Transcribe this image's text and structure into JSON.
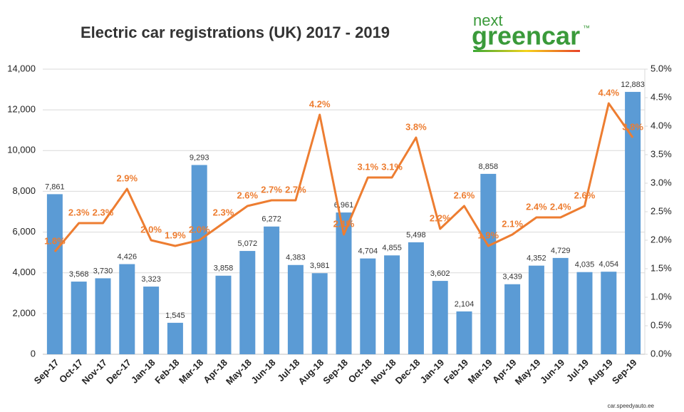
{
  "chart_data": {
    "type": "bar",
    "title": "Electric car registrations (UK) 2017 - 2019",
    "logo": [
      "next",
      "greencar",
      "™"
    ],
    "watermark": "car.speedyauto.ee",
    "categories": [
      "Sep-17",
      "Oct-17",
      "Nov-17",
      "Dec-17",
      "Jan-18",
      "Feb-18",
      "Mar-18",
      "Apr-18",
      "May-18",
      "Jun-18",
      "Jul-18",
      "Aug-18",
      "Sep-18",
      "Oct-18",
      "Nov-18",
      "Dec-18",
      "Jan-19",
      "Feb-19",
      "Mar-19",
      "Apr-19",
      "May-19",
      "Jun-19",
      "Jul-19",
      "Aug-19",
      "Sep-19"
    ],
    "series": [
      {
        "type": "bar",
        "color": "#5b9bd5",
        "values": [
          7861,
          3568,
          3730,
          4426,
          3323,
          1545,
          9293,
          3858,
          5072,
          6272,
          4383,
          3981,
          6961,
          4704,
          4855,
          5498,
          3602,
          2104,
          8858,
          3439,
          4352,
          4729,
          4035,
          4054,
          12883
        ],
        "value_labels": [
          "7,861",
          "3,568",
          "3,730",
          "4,426",
          "3,323",
          "1,545",
          "9,293",
          "3,858",
          "5,072",
          "6,272",
          "4,383",
          "3,981",
          "6,961",
          "4,704",
          "4,855",
          "5,498",
          "3,602",
          "2,104",
          "8,858",
          "3,439",
          "4,352",
          "4,729",
          "4,035",
          "4,054",
          "12,883"
        ]
      },
      {
        "type": "line",
        "axis": "y2",
        "color": "#ed7d31",
        "values": [
          1.8,
          2.3,
          2.3,
          2.9,
          2.0,
          1.9,
          2.0,
          2.3,
          2.6,
          2.7,
          2.7,
          4.2,
          2.1,
          3.1,
          3.1,
          3.8,
          2.2,
          2.6,
          1.9,
          2.1,
          2.4,
          2.4,
          2.6,
          4.4,
          3.8
        ],
        "value_labels": [
          "1.8%",
          "2.3%",
          "2.3%",
          "2.9%",
          "2.0%",
          "1.9%",
          "2.0%",
          "2.3%",
          "2.6%",
          "2.7%",
          "2.7%",
          "4.2%",
          "2.1%",
          "3.1%",
          "3.1%",
          "3.8%",
          "2.2%",
          "2.6%",
          "1.9%",
          "2.1%",
          "2.4%",
          "2.4%",
          "2.6%",
          "4.4%",
          "3.8%"
        ]
      }
    ],
    "ylim": [
      0,
      14000
    ],
    "yticks": [
      {
        "value": 0,
        "label": "0"
      },
      {
        "value": 2000,
        "label": "2,000"
      },
      {
        "value": 4000,
        "label": "4,000"
      },
      {
        "value": 6000,
        "label": "6,000"
      },
      {
        "value": 8000,
        "label": "8,000"
      },
      {
        "value": 10000,
        "label": "10,000"
      },
      {
        "value": 12000,
        "label": "12,000"
      },
      {
        "value": 14000,
        "label": "14,000"
      }
    ],
    "y2lim": [
      0,
      5
    ],
    "y2ticks": [
      {
        "value": 0,
        "label": "0.0%"
      },
      {
        "value": 0.5,
        "label": "0.5%"
      },
      {
        "value": 1,
        "label": "1.0%"
      },
      {
        "value": 1.5,
        "label": "1.5%"
      },
      {
        "value": 2,
        "label": "2.0%"
      },
      {
        "value": 2.5,
        "label": "2.5%"
      },
      {
        "value": 3,
        "label": "3.0%"
      },
      {
        "value": 3.5,
        "label": "3.5%"
      },
      {
        "value": 4,
        "label": "4.0%"
      },
      {
        "value": 4.5,
        "label": "4.5%"
      },
      {
        "value": 5,
        "label": "5.0%"
      }
    ],
    "grid": true
  }
}
